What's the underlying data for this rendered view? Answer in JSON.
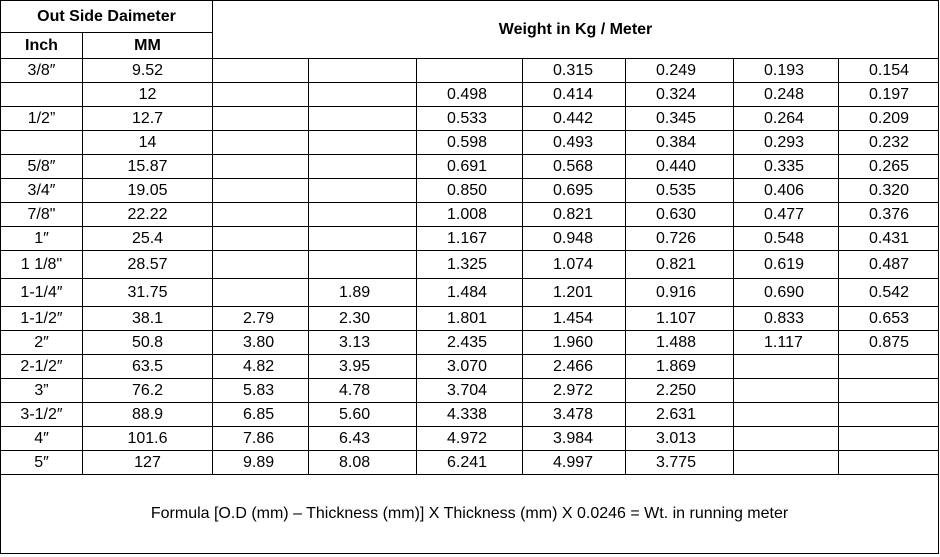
{
  "header": {
    "outside_diameter": "Out Side Daimeter",
    "weight": "Weight in Kg / Meter",
    "inch": "Inch",
    "mm": "MM"
  },
  "rows": [
    {
      "inch": "3/8″",
      "mm": "9.52",
      "w": [
        "",
        "",
        "",
        "0.315",
        "0.249",
        "0.193",
        "0.154"
      ]
    },
    {
      "inch": "",
      "mm": "12",
      "w": [
        "",
        "",
        "0.498",
        "0.414",
        "0.324",
        "0.248",
        "0.197"
      ]
    },
    {
      "inch": "1/2”",
      "mm": "12.7",
      "w": [
        "",
        "",
        "0.533",
        "0.442",
        "0.345",
        "0.264",
        "0.209"
      ]
    },
    {
      "inch": "",
      "mm": "14",
      "w": [
        "",
        "",
        "0.598",
        "0.493",
        "0.384",
        "0.293",
        "0.232"
      ]
    },
    {
      "inch": "5/8″",
      "mm": "15.87",
      "w": [
        "",
        "",
        "0.691",
        "0.568",
        "0.440",
        "0.335",
        "0.265"
      ]
    },
    {
      "inch": "3/4″",
      "mm": "19.05",
      "w": [
        "",
        "",
        "0.850",
        "0.695",
        "0.535",
        "0.406",
        "0.320"
      ]
    },
    {
      "inch": "7/8\"",
      "mm": "22.22",
      "w": [
        "",
        "",
        "1.008",
        "0.821",
        "0.630",
        "0.477",
        "0.376"
      ]
    },
    {
      "inch": "1″",
      "mm": "25.4",
      "w": [
        "",
        "",
        "1.167",
        "0.948",
        "0.726",
        "0.548",
        "0.431"
      ]
    },
    {
      "inch": "1 1/8\"",
      "mm": "28.57",
      "w": [
        "",
        "",
        "1.325",
        "1.074",
        "0.821",
        "0.619",
        "0.487"
      ]
    },
    {
      "inch": "1-1/4″",
      "mm": "31.75",
      "w": [
        "",
        "1.89",
        "1.484",
        "1.201",
        "0.916",
        "0.690",
        "0.542"
      ]
    },
    {
      "inch": "1-1/2″",
      "mm": "38.1",
      "w": [
        "2.79",
        "2.30",
        "1.801",
        "1.454",
        "1.107",
        "0.833",
        "0.653"
      ]
    },
    {
      "inch": "2″",
      "mm": "50.8",
      "w": [
        "3.80",
        "3.13",
        "2.435",
        "1.960",
        "1.488",
        "1.117",
        "0.875"
      ]
    },
    {
      "inch": "2-1/2″",
      "mm": "63.5",
      "w": [
        "4.82",
        "3.95",
        "3.070",
        "2.466",
        "1.869",
        "",
        ""
      ]
    },
    {
      "inch": "3”",
      "mm": "76.2",
      "w": [
        "5.83",
        "4.78",
        "3.704",
        "2.972",
        "2.250",
        "",
        ""
      ]
    },
    {
      "inch": "3-1/2″",
      "mm": "88.9",
      "w": [
        "6.85",
        "5.60",
        "4.338",
        "3.478",
        "2.631",
        "",
        ""
      ]
    },
    {
      "inch": "4″",
      "mm": "101.6",
      "w": [
        "7.86",
        "6.43",
        "4.972",
        "3.984",
        "3.013",
        "",
        ""
      ]
    },
    {
      "inch": "5″",
      "mm": "127",
      "w": [
        "9.89",
        "8.08",
        "6.241",
        "4.997",
        "3.775",
        "",
        ""
      ]
    }
  ],
  "formula": "Formula [O.D (mm) – Thickness (mm)] X Thickness (mm) X 0.0246 = Wt. in running meter"
}
